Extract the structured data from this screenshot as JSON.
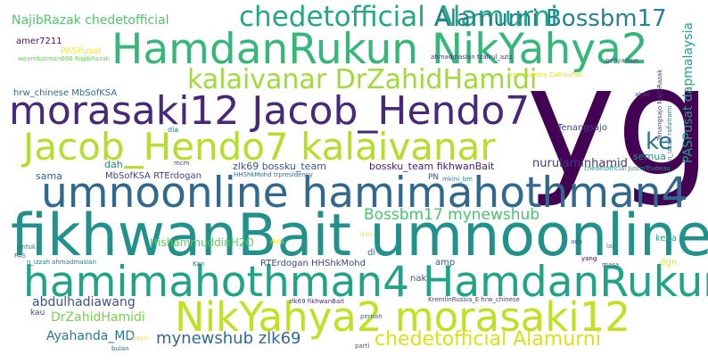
{
  "words": [
    {
      "text": "yg",
      "color": "#440154"
    },
    {
      "text": "fikhwanBait umnoonline",
      "color": "#21918c"
    },
    {
      "text": "umnoonline hamimahothman4",
      "color": "#31688e"
    },
    {
      "text": "hamimahothman4 HamdanRukun",
      "color": "#20a386"
    },
    {
      "text": "HamdanRukun NikYahya2",
      "color": "#35b779"
    },
    {
      "text": "NikYahya2 morasaki12",
      "color": "#c2df23"
    },
    {
      "text": "morasaki12 Jacob_Hendo7",
      "color": "#482878"
    },
    {
      "text": "Jacob_Hendo7 kalaivanar",
      "color": "#b5de2b"
    },
    {
      "text": "kalaivanar DrZahidHamidi",
      "color": "#9fda3a"
    },
    {
      "text": "chedetofficial Alamurni",
      "color": "#22a785"
    },
    {
      "text": "Alamurni Bossbm17",
      "color": "#26828e"
    },
    {
      "text": "chedetofficial Alamurni",
      "color": "#d8e219"
    },
    {
      "text": "ke",
      "color": "#2c728e"
    },
    {
      "text": "Bossbm17 mynewshub",
      "color": "#4ac16d"
    },
    {
      "text": "mynewshub zlk69",
      "color": "#306a8e"
    },
    {
      "text": "abdulhadiawang",
      "color": "#3b528b"
    },
    {
      "text": "DrZahidHamidi",
      "color": "#7ad151"
    },
    {
      "text": "Ayahanda_MD",
      "color": "#2a788e"
    },
    {
      "text": "nurulaminhamid",
      "color": "#453781"
    },
    {
      "text": "bossku_team fikhwanBait",
      "color": "#482173"
    },
    {
      "text": "zlk69 bossku_team",
      "color": "#38588c"
    },
    {
      "text": "NajibRazak chedetofficial",
      "color": "#52c569"
    },
    {
      "text": "PASPusat dapmalaysia",
      "color": "#1fa088"
    },
    {
      "text": "HishammuddinH2O",
      "color": "#5ec962"
    },
    {
      "text": "MbSofKSA RTErdogan",
      "color": "#404688"
    },
    {
      "text": "RTErdogan HHShkMohd",
      "color": "#3e4a89"
    },
    {
      "text": "sama",
      "color": "#355f8d"
    },
    {
      "text": "dah",
      "color": "#24868e"
    },
    {
      "text": "Tenangsajo",
      "color": "#3f4788"
    },
    {
      "text": "semua",
      "color": "#1f988b"
    },
    {
      "text": "amer7211",
      "color": "#471365"
    },
    {
      "text": "PASPusat",
      "color": "#fde725"
    },
    {
      "text": "wearebatman666 NajibRazak",
      "color": "#6ccd5a"
    },
    {
      "text": "ahmadmaslan tzafrul_aziz",
      "color": "#46327e"
    },
    {
      "text": "penyamun",
      "color": "#3e4989"
    },
    {
      "text": "hrw_chinese MbSofKSA",
      "color": "#31688e"
    },
    {
      "text": "trpresidency CathayPak",
      "color": "#dde318"
    },
    {
      "text": "dia",
      "color": "#287c8e"
    },
    {
      "text": "mcm",
      "color": "#414487"
    },
    {
      "text": "HHShkMohd trpresidency",
      "color": "#2e6e8e"
    },
    {
      "text": "PN",
      "color": "#3a548c"
    },
    {
      "text": "mkini_bm",
      "color": "#25858e"
    },
    {
      "text": "chedetofficial JustinTrudeau",
      "color": "#1e9b8a"
    },
    {
      "text": "Tenangsajo NajibRazak",
      "color": "#423f85"
    },
    {
      "text": "n_izzah rafizirami",
      "color": "#2d718e"
    },
    {
      "text": "akan",
      "color": "#404588"
    },
    {
      "text": "kena",
      "color": "#21a685"
    },
    {
      "text": "dgn",
      "color": "#e5e419"
    },
    {
      "text": "amp",
      "color": "#365c8d"
    },
    {
      "text": "di",
      "color": "#31678e"
    },
    {
      "text": "nak",
      "color": "#3f4889"
    },
    {
      "text": "untuk",
      "color": "#2b758e"
    },
    {
      "text": "PAS",
      "color": "#2a778e"
    },
    {
      "text": "dulu",
      "color": "#f1e51d"
    },
    {
      "text": "dan",
      "color": "#e2e418"
    },
    {
      "text": "Kan",
      "color": "#38598c"
    },
    {
      "text": "n_izzah ahmadmaslan",
      "color": "#297a8e"
    },
    {
      "text": "lah",
      "color": "#23898e"
    },
    {
      "text": "ada",
      "color": "#375a8c"
    },
    {
      "text": "yang",
      "color": "#440154"
    },
    {
      "text": "masa",
      "color": "#3c508b"
    },
    {
      "text": "zlk69 fikhwanBait",
      "color": "#472d7b"
    },
    {
      "text": "KremlinRussia_E hrw_chinese",
      "color": "#433e85"
    },
    {
      "text": "pernah",
      "color": "#2f6c8e"
    },
    {
      "text": "parti",
      "color": "#34618d"
    },
    {
      "text": "kau",
      "color": "#3e4c8a"
    },
    {
      "text": "Saya",
      "color": "#f8e621"
    },
    {
      "text": "bulan",
      "color": "#33628d"
    }
  ]
}
